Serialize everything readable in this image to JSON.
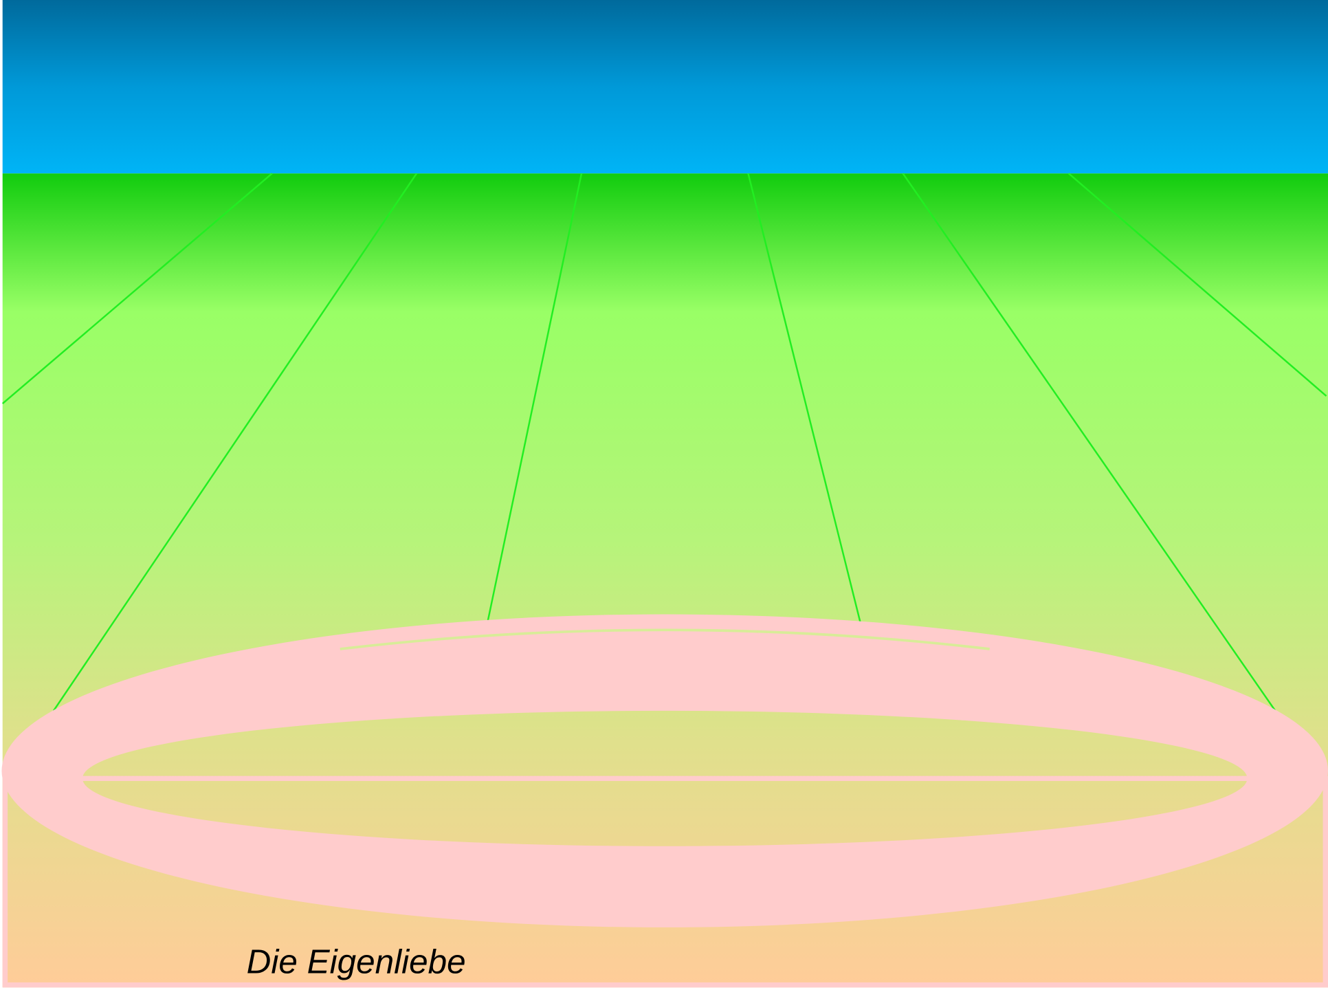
{
  "caption": "Die Eigenliebe"
}
